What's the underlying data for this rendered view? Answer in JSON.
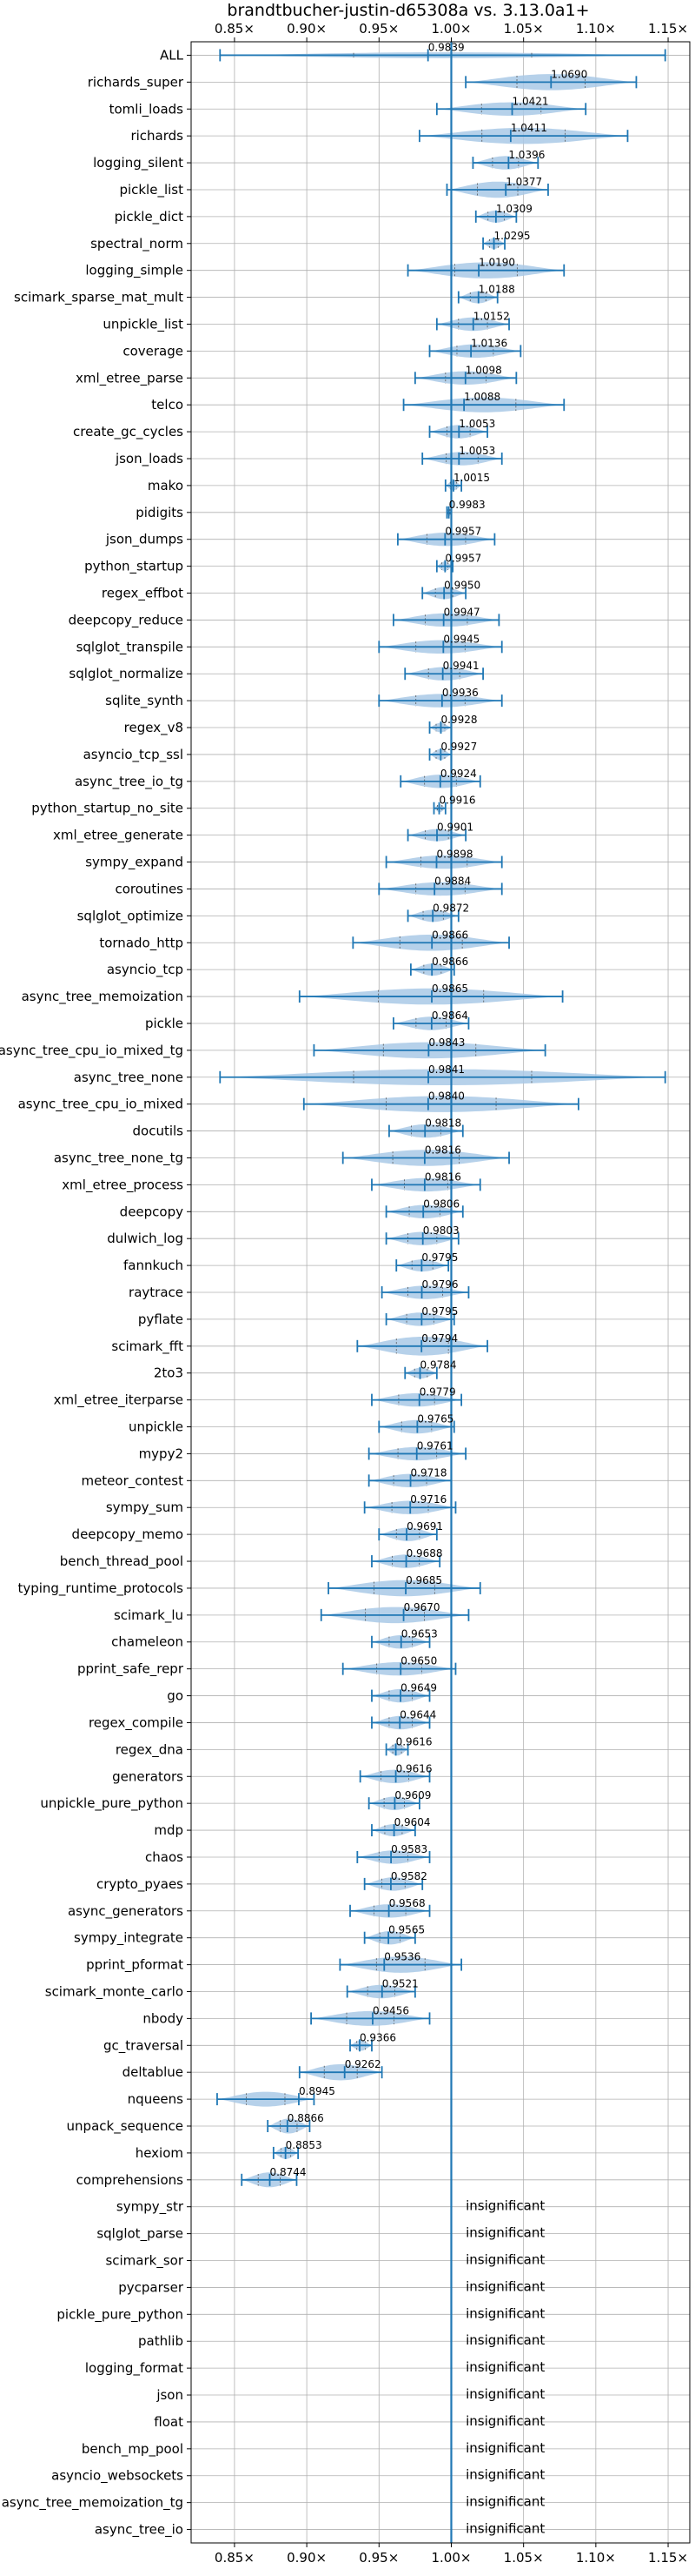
{
  "chart_data": {
    "type": "violin",
    "title": "brandtbucher-justin-d65308a vs. 3.13.0a1+",
    "xlim": [
      0.82,
      1.165
    ],
    "x_ticks": [
      0.85,
      0.9,
      0.95,
      1.0,
      1.05,
      1.1,
      1.15
    ],
    "x_tick_labels": [
      "0.85×",
      "0.90×",
      "0.95×",
      "1.00×",
      "1.05×",
      "1.10×",
      "1.15×"
    ],
    "reference_line": 1.0,
    "grid": true,
    "colors": {
      "violin": "#a9c9e6",
      "error_bar": "#1f77b4",
      "grid": "#b0b0b0"
    },
    "insignificant_label": "insignificant",
    "benchmarks": [
      {
        "name": "ALL",
        "value": 0.9839,
        "label": "0.9839",
        "min": 0.84,
        "max": 1.148,
        "width": 0.22
      },
      {
        "name": "richards_super",
        "value": 1.069,
        "label": "1.0690",
        "min": 1.01,
        "max": 1.128,
        "width": 0.6
      },
      {
        "name": "tomli_loads",
        "value": 1.0421,
        "label": "1.0421",
        "min": 0.99,
        "max": 1.093,
        "width": 0.5
      },
      {
        "name": "richards",
        "value": 1.0411,
        "label": "1.0411",
        "min": 0.978,
        "max": 1.122,
        "width": 0.6
      },
      {
        "name": "logging_silent",
        "value": 1.0396,
        "label": "1.0396",
        "min": 1.015,
        "max": 1.06,
        "width": 0.5
      },
      {
        "name": "pickle_list",
        "value": 1.0377,
        "label": "1.0377",
        "min": 0.997,
        "max": 1.067,
        "width": 0.6
      },
      {
        "name": "pickle_dict",
        "value": 1.0309,
        "label": "1.0309",
        "min": 1.017,
        "max": 1.045,
        "width": 0.45
      },
      {
        "name": "spectral_norm",
        "value": 1.0295,
        "label": "1.0295",
        "min": 1.022,
        "max": 1.037,
        "width": 0.4
      },
      {
        "name": "logging_simple",
        "value": 1.019,
        "label": "1.0190",
        "min": 0.97,
        "max": 1.078,
        "width": 0.6
      },
      {
        "name": "scimark_sparse_mat_mult",
        "value": 1.0188,
        "label": "1.0188",
        "min": 1.005,
        "max": 1.032,
        "width": 0.45
      },
      {
        "name": "unpickle_list",
        "value": 1.0152,
        "label": "1.0152",
        "min": 0.99,
        "max": 1.04,
        "width": 0.5
      },
      {
        "name": "coverage",
        "value": 1.0136,
        "label": "1.0136",
        "min": 0.985,
        "max": 1.048,
        "width": 0.5
      },
      {
        "name": "xml_etree_parse",
        "value": 1.0098,
        "label": "1.0098",
        "min": 0.975,
        "max": 1.045,
        "width": 0.5
      },
      {
        "name": "telco",
        "value": 1.0088,
        "label": "1.0088",
        "min": 0.967,
        "max": 1.078,
        "width": 0.55
      },
      {
        "name": "create_gc_cycles",
        "value": 1.0053,
        "label": "1.0053",
        "min": 0.985,
        "max": 1.025,
        "width": 0.5
      },
      {
        "name": "json_loads",
        "value": 1.0053,
        "label": "1.0053",
        "min": 0.98,
        "max": 1.035,
        "width": 0.5
      },
      {
        "name": "mako",
        "value": 1.0015,
        "label": "1.0015",
        "min": 0.996,
        "max": 1.007,
        "width": 0.35
      },
      {
        "name": "pidigits",
        "value": 0.9983,
        "label": "0.9983",
        "min": 0.997,
        "max": 1.0,
        "width": 0.3
      },
      {
        "name": "json_dumps",
        "value": 0.9957,
        "label": "0.9957",
        "min": 0.963,
        "max": 1.03,
        "width": 0.5
      },
      {
        "name": "python_startup",
        "value": 0.9957,
        "label": "0.9957",
        "min": 0.99,
        "max": 1.001,
        "width": 0.35
      },
      {
        "name": "regex_effbot",
        "value": 0.995,
        "label": "0.9950",
        "min": 0.98,
        "max": 1.01,
        "width": 0.45
      },
      {
        "name": "deepcopy_reduce",
        "value": 0.9947,
        "label": "0.9947",
        "min": 0.96,
        "max": 1.033,
        "width": 0.5
      },
      {
        "name": "sqlglot_transpile",
        "value": 0.9945,
        "label": "0.9945",
        "min": 0.95,
        "max": 1.035,
        "width": 0.5
      },
      {
        "name": "sqlglot_normalize",
        "value": 0.9941,
        "label": "0.9941",
        "min": 0.968,
        "max": 1.022,
        "width": 0.5
      },
      {
        "name": "sqlite_synth",
        "value": 0.9936,
        "label": "0.9936",
        "min": 0.95,
        "max": 1.035,
        "width": 0.5
      },
      {
        "name": "regex_v8",
        "value": 0.9928,
        "label": "0.9928",
        "min": 0.985,
        "max": 1.0,
        "width": 0.35
      },
      {
        "name": "asyncio_tcp_ssl",
        "value": 0.9927,
        "label": "0.9927",
        "min": 0.985,
        "max": 1.0,
        "width": 0.4
      },
      {
        "name": "async_tree_io_tg",
        "value": 0.9924,
        "label": "0.9924",
        "min": 0.965,
        "max": 1.02,
        "width": 0.5
      },
      {
        "name": "python_startup_no_site",
        "value": 0.9916,
        "label": "0.9916",
        "min": 0.988,
        "max": 0.996,
        "width": 0.3
      },
      {
        "name": "xml_etree_generate",
        "value": 0.9901,
        "label": "0.9901",
        "min": 0.97,
        "max": 1.01,
        "width": 0.45
      },
      {
        "name": "sympy_expand",
        "value": 0.9898,
        "label": "0.9898",
        "min": 0.955,
        "max": 1.035,
        "width": 0.5
      },
      {
        "name": "coroutines",
        "value": 0.9884,
        "label": "0.9884",
        "min": 0.95,
        "max": 1.035,
        "width": 0.5
      },
      {
        "name": "sqlglot_optimize",
        "value": 0.9872,
        "label": "0.9872",
        "min": 0.97,
        "max": 1.005,
        "width": 0.45
      },
      {
        "name": "tornado_http",
        "value": 0.9866,
        "label": "0.9866",
        "min": 0.932,
        "max": 1.04,
        "width": 0.6
      },
      {
        "name": "asyncio_tcp",
        "value": 0.9866,
        "label": "0.9866",
        "min": 0.972,
        "max": 1.002,
        "width": 0.45
      },
      {
        "name": "async_tree_memoization",
        "value": 0.9865,
        "label": "0.9865",
        "min": 0.895,
        "max": 1.077,
        "width": 0.6
      },
      {
        "name": "pickle",
        "value": 0.9864,
        "label": "0.9864",
        "min": 0.96,
        "max": 1.012,
        "width": 0.5
      },
      {
        "name": "async_tree_cpu_io_mixed_tg",
        "value": 0.9843,
        "label": "0.9843",
        "min": 0.905,
        "max": 1.065,
        "width": 0.6
      },
      {
        "name": "async_tree_none",
        "value": 0.9841,
        "label": "0.9841",
        "min": 0.84,
        "max": 1.148,
        "width": 0.6
      },
      {
        "name": "async_tree_cpu_io_mixed",
        "value": 0.984,
        "label": "0.9840",
        "min": 0.898,
        "max": 1.088,
        "width": 0.6
      },
      {
        "name": "docutils",
        "value": 0.9818,
        "label": "0.9818",
        "min": 0.957,
        "max": 1.008,
        "width": 0.5
      },
      {
        "name": "async_tree_none_tg",
        "value": 0.9816,
        "label": "0.9816",
        "min": 0.925,
        "max": 1.04,
        "width": 0.6
      },
      {
        "name": "xml_etree_process",
        "value": 0.9816,
        "label": "0.9816",
        "min": 0.945,
        "max": 1.02,
        "width": 0.5
      },
      {
        "name": "deepcopy",
        "value": 0.9806,
        "label": "0.9806",
        "min": 0.955,
        "max": 1.008,
        "width": 0.5
      },
      {
        "name": "dulwich_log",
        "value": 0.9803,
        "label": "0.9803",
        "min": 0.955,
        "max": 1.005,
        "width": 0.5
      },
      {
        "name": "fannkuch",
        "value": 0.9795,
        "label": "0.9795",
        "min": 0.962,
        "max": 0.998,
        "width": 0.45
      },
      {
        "name": "raytrace",
        "value": 0.9796,
        "label": "0.9796",
        "min": 0.952,
        "max": 1.012,
        "width": 0.5
      },
      {
        "name": "pyflate",
        "value": 0.9795,
        "label": "0.9795",
        "min": 0.955,
        "max": 1.002,
        "width": 0.5
      },
      {
        "name": "scimark_fft",
        "value": 0.9794,
        "label": "0.9794",
        "min": 0.935,
        "max": 1.025,
        "width": 0.7
      },
      {
        "name": "2to3",
        "value": 0.9784,
        "label": "0.9784",
        "min": 0.968,
        "max": 0.99,
        "width": 0.4
      },
      {
        "name": "xml_etree_iterparse",
        "value": 0.9779,
        "label": "0.9779",
        "min": 0.945,
        "max": 1.007,
        "width": 0.5
      },
      {
        "name": "unpickle",
        "value": 0.9765,
        "label": "0.9765",
        "min": 0.95,
        "max": 1.002,
        "width": 0.5
      },
      {
        "name": "mypy2",
        "value": 0.9761,
        "label": "0.9761",
        "min": 0.943,
        "max": 1.01,
        "width": 0.5
      },
      {
        "name": "meteor_contest",
        "value": 0.9718,
        "label": "0.9718",
        "min": 0.943,
        "max": 1.0,
        "width": 0.5
      },
      {
        "name": "sympy_sum",
        "value": 0.9716,
        "label": "0.9716",
        "min": 0.94,
        "max": 1.003,
        "width": 0.5
      },
      {
        "name": "deepcopy_memo",
        "value": 0.9691,
        "label": "0.9691",
        "min": 0.95,
        "max": 0.99,
        "width": 0.5
      },
      {
        "name": "bench_thread_pool",
        "value": 0.9688,
        "label": "0.9688",
        "min": 0.945,
        "max": 0.992,
        "width": 0.5
      },
      {
        "name": "typing_runtime_protocols",
        "value": 0.9685,
        "label": "0.9685",
        "min": 0.915,
        "max": 1.02,
        "width": 0.6
      },
      {
        "name": "scimark_lu",
        "value": 0.967,
        "label": "0.9670",
        "min": 0.91,
        "max": 1.012,
        "width": 0.6
      },
      {
        "name": "chameleon",
        "value": 0.9653,
        "label": "0.9653",
        "min": 0.945,
        "max": 0.985,
        "width": 0.5
      },
      {
        "name": "pprint_safe_repr",
        "value": 0.965,
        "label": "0.9650",
        "min": 0.925,
        "max": 1.003,
        "width": 0.5
      },
      {
        "name": "go",
        "value": 0.9649,
        "label": "0.9649",
        "min": 0.945,
        "max": 0.985,
        "width": 0.5
      },
      {
        "name": "regex_compile",
        "value": 0.9644,
        "label": "0.9644",
        "min": 0.945,
        "max": 0.985,
        "width": 0.5
      },
      {
        "name": "regex_dna",
        "value": 0.9616,
        "label": "0.9616",
        "min": 0.955,
        "max": 0.97,
        "width": 0.45
      },
      {
        "name": "generators",
        "value": 0.9616,
        "label": "0.9616",
        "min": 0.937,
        "max": 0.985,
        "width": 0.5
      },
      {
        "name": "unpickle_pure_python",
        "value": 0.9609,
        "label": "0.9609",
        "min": 0.943,
        "max": 0.978,
        "width": 0.5
      },
      {
        "name": "mdp",
        "value": 0.9604,
        "label": "0.9604",
        "min": 0.945,
        "max": 0.975,
        "width": 0.45
      },
      {
        "name": "chaos",
        "value": 0.9583,
        "label": "0.9583",
        "min": 0.935,
        "max": 0.985,
        "width": 0.5
      },
      {
        "name": "crypto_pyaes",
        "value": 0.9582,
        "label": "0.9582",
        "min": 0.94,
        "max": 0.98,
        "width": 0.5
      },
      {
        "name": "async_generators",
        "value": 0.9568,
        "label": "0.9568",
        "min": 0.93,
        "max": 0.985,
        "width": 0.5
      },
      {
        "name": "sympy_integrate",
        "value": 0.9565,
        "label": "0.9565",
        "min": 0.94,
        "max": 0.975,
        "width": 0.5
      },
      {
        "name": "pprint_pformat",
        "value": 0.9536,
        "label": "0.9536",
        "min": 0.923,
        "max": 1.007,
        "width": 0.6
      },
      {
        "name": "scimark_monte_carlo",
        "value": 0.9521,
        "label": "0.9521",
        "min": 0.928,
        "max": 0.975,
        "width": 0.5
      },
      {
        "name": "nbody",
        "value": 0.9456,
        "label": "0.9456",
        "min": 0.903,
        "max": 0.985,
        "width": 0.55
      },
      {
        "name": "gc_traversal",
        "value": 0.9366,
        "label": "0.9366",
        "min": 0.93,
        "max": 0.945,
        "width": 0.4
      },
      {
        "name": "deltablue",
        "value": 0.9262,
        "label": "0.9262",
        "min": 0.895,
        "max": 0.952,
        "width": 0.6
      },
      {
        "name": "nqueens",
        "value": 0.8945,
        "label": "0.8945",
        "min": 0.838,
        "max": 0.905,
        "width": 0.55
      },
      {
        "name": "unpack_sequence",
        "value": 0.8866,
        "label": "0.8866",
        "min": 0.873,
        "max": 0.902,
        "width": 0.55
      },
      {
        "name": "hexiom",
        "value": 0.8853,
        "label": "0.8853",
        "min": 0.877,
        "max": 0.894,
        "width": 0.45
      },
      {
        "name": "comprehensions",
        "value": 0.8744,
        "label": "0.8744",
        "min": 0.855,
        "max": 0.893,
        "width": 0.55
      },
      {
        "name": "sympy_str",
        "insignificant": true
      },
      {
        "name": "sqlglot_parse",
        "insignificant": true
      },
      {
        "name": "scimark_sor",
        "insignificant": true
      },
      {
        "name": "pycparser",
        "insignificant": true
      },
      {
        "name": "pickle_pure_python",
        "insignificant": true
      },
      {
        "name": "pathlib",
        "insignificant": true
      },
      {
        "name": "logging_format",
        "insignificant": true
      },
      {
        "name": "json",
        "insignificant": true
      },
      {
        "name": "float",
        "insignificant": true
      },
      {
        "name": "bench_mp_pool",
        "insignificant": true
      },
      {
        "name": "asyncio_websockets",
        "insignificant": true
      },
      {
        "name": "async_tree_memoization_tg",
        "insignificant": true
      },
      {
        "name": "async_tree_io",
        "insignificant": true
      }
    ]
  }
}
